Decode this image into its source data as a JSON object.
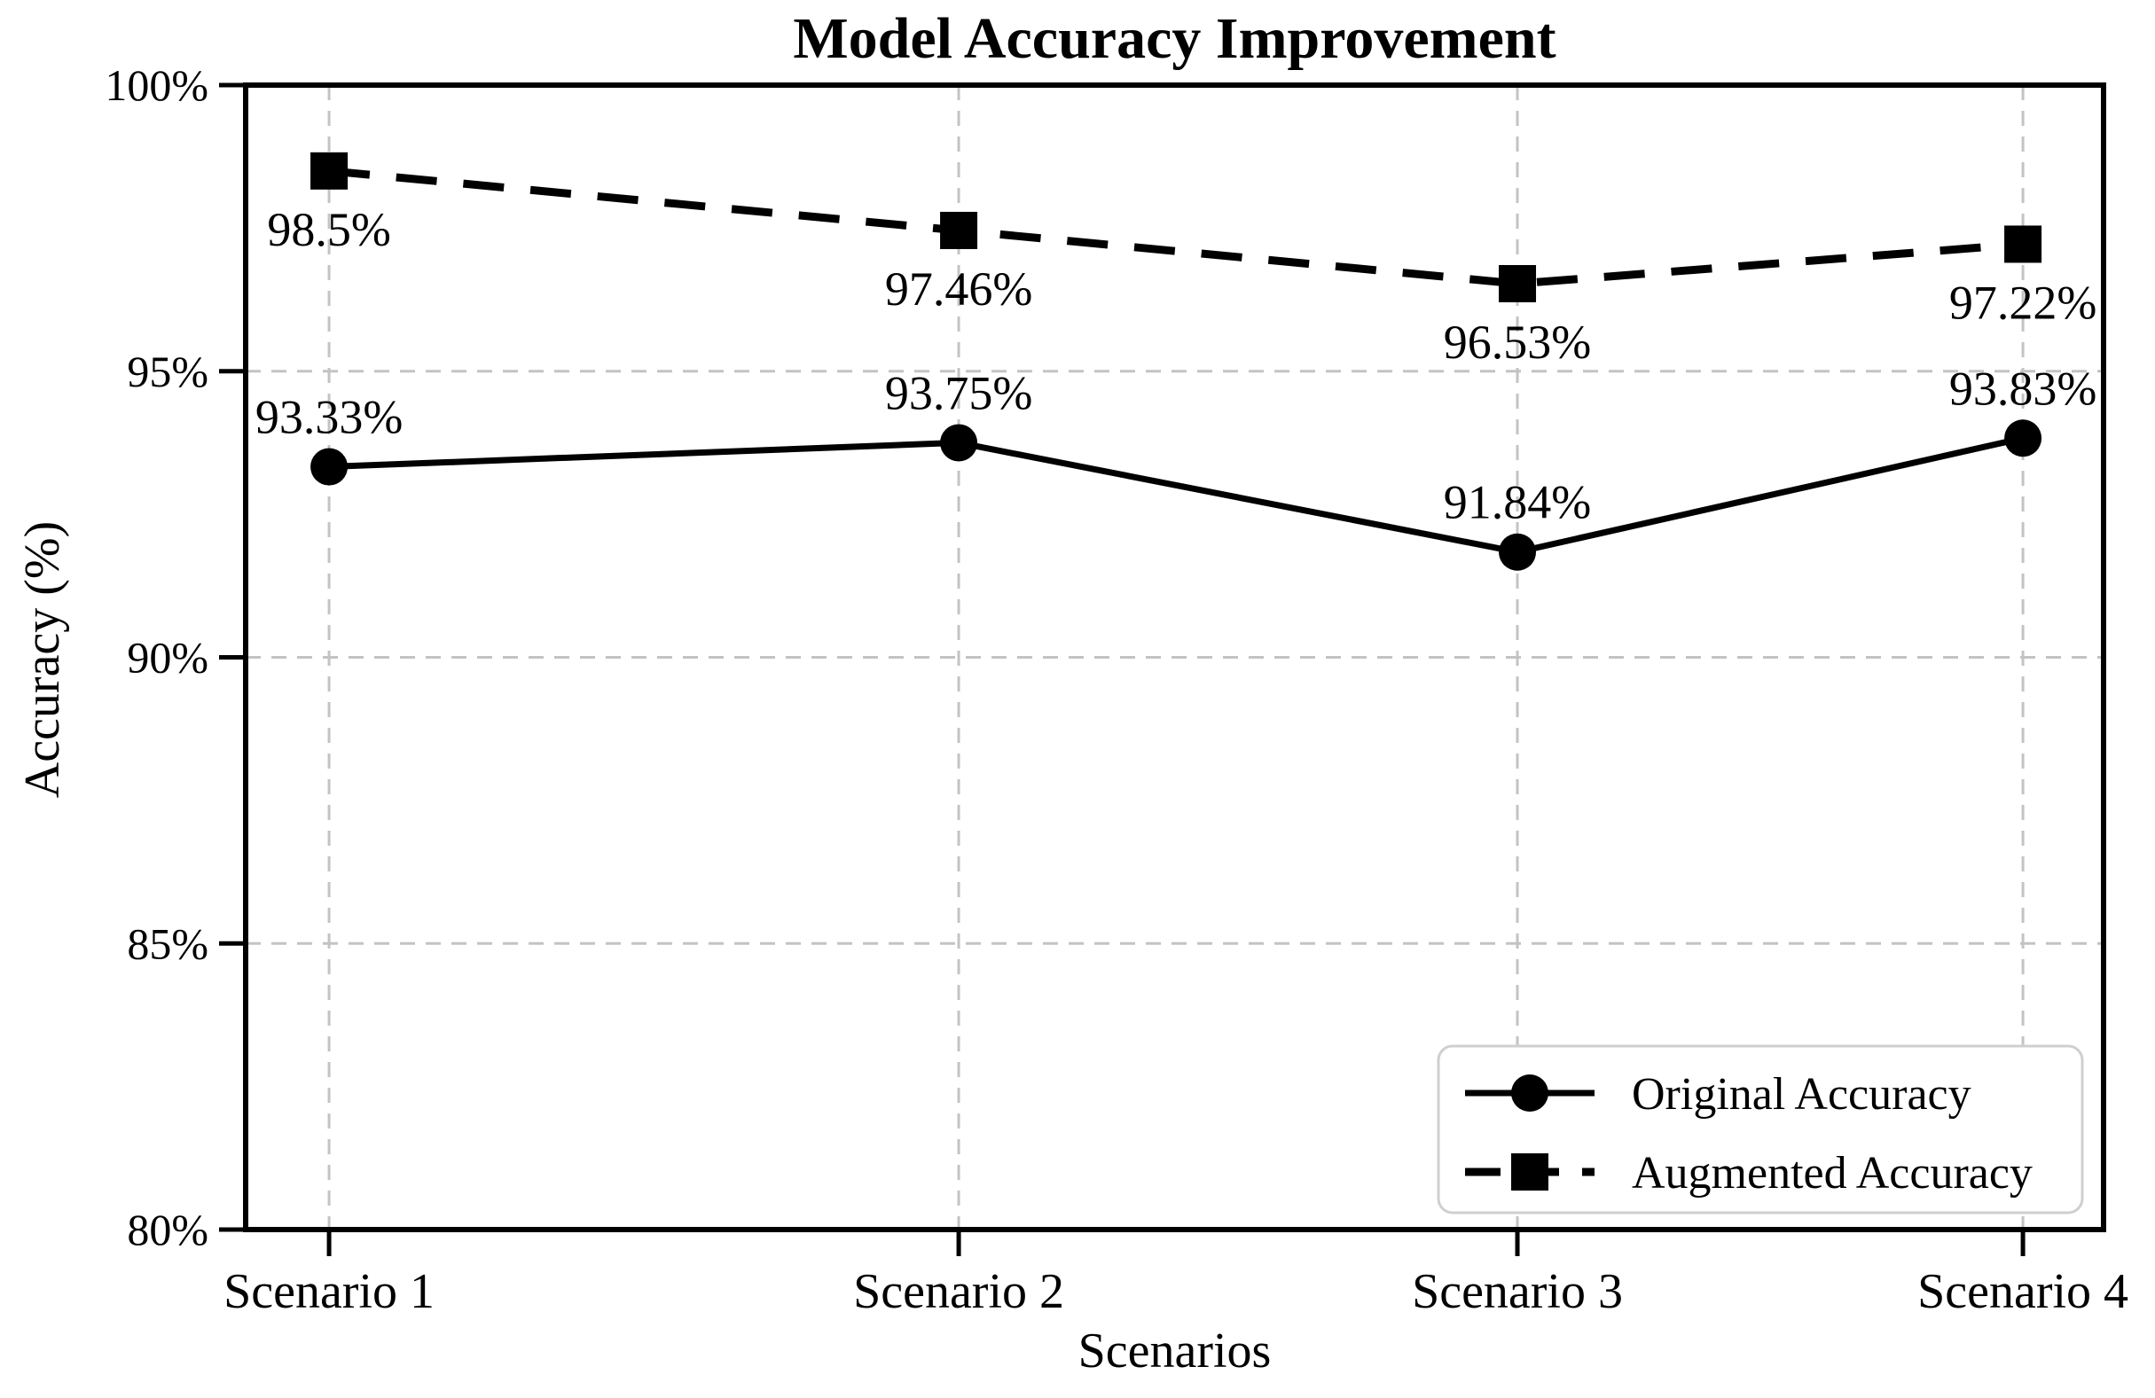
{
  "chart_data": {
    "type": "line",
    "title": "Model Accuracy Improvement",
    "xlabel": "Scenarios",
    "ylabel": "Accuracy (%)",
    "categories": [
      "Scenario 1",
      "Scenario 2",
      "Scenario 3",
      "Scenario 4"
    ],
    "series": [
      {
        "name": "Original Accuracy",
        "values": [
          93.33,
          93.75,
          91.84,
          93.83
        ],
        "point_labels": [
          "93.33%",
          "93.75%",
          "91.84%",
          "93.83%"
        ],
        "label_position": "above",
        "marker": "circle",
        "line_style": "solid",
        "color": "#000000"
      },
      {
        "name": "Augmented Accuracy",
        "values": [
          98.5,
          97.46,
          96.53,
          97.22
        ],
        "point_labels": [
          "98.5%",
          "97.46%",
          "96.53%",
          "97.22%"
        ],
        "label_position": "below",
        "marker": "square",
        "line_style": "dashed",
        "color": "#000000"
      }
    ],
    "ylim": [
      80,
      100
    ],
    "y_ticks": {
      "values": [
        80,
        85,
        90,
        95,
        100
      ],
      "labels": [
        "80%",
        "85%",
        "90%",
        "95%",
        "100%"
      ]
    },
    "grid": true,
    "grid_style": "dashed",
    "grid_color": "#c3c3c3",
    "axis_color": "#000000",
    "background_color": "#ffffff",
    "legend": {
      "position": "lower right",
      "entries": [
        "Original Accuracy",
        "Augmented Accuracy"
      ]
    }
  }
}
